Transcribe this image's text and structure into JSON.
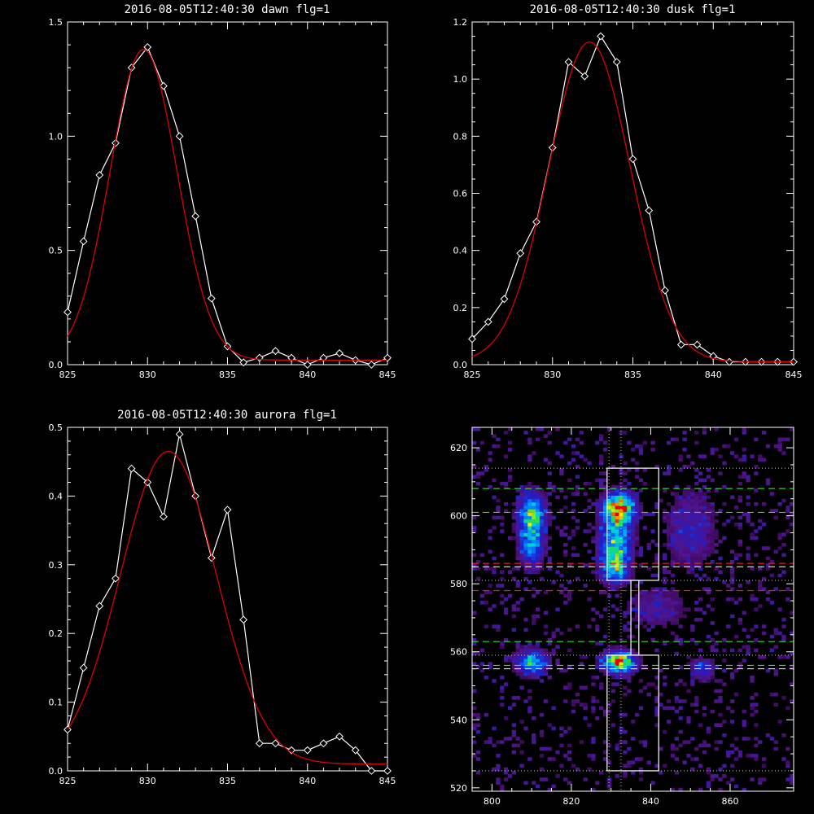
{
  "chart_data": [
    {
      "type": "line",
      "title": "2016-08-05T12:40:30 dawn flg=1",
      "xlim": [
        825,
        845
      ],
      "ylim": [
        0,
        1.5
      ],
      "xticks": [
        "825",
        "830",
        "835",
        "840",
        "845"
      ],
      "yticks": [
        "0.0",
        "0.5",
        "1.0",
        "1.5"
      ],
      "grid": false,
      "series": [
        {
          "style": "data",
          "color": "#ffffff",
          "marker": "diamond",
          "x": [
            825,
            826,
            827,
            828,
            829,
            830,
            831,
            832,
            833,
            834,
            835,
            836,
            837,
            838,
            839,
            840,
            841,
            842,
            843,
            844,
            845
          ],
          "y": [
            0.23,
            0.54,
            0.83,
            0.97,
            1.3,
            1.39,
            1.22,
            1.0,
            0.65,
            0.29,
            0.08,
            0.01,
            0.03,
            0.06,
            0.03,
            0.0,
            0.03,
            0.05,
            0.02,
            0.0,
            0.03
          ]
        },
        {
          "style": "fit",
          "color": "#dd0000",
          "gauss": {
            "amp": 1.36,
            "center": 829.75,
            "sigma": 2.1,
            "offset": 0.02
          }
        }
      ]
    },
    {
      "type": "line",
      "title": "2016-08-05T12:40:30 dusk flg=1",
      "xlim": [
        825,
        845
      ],
      "ylim": [
        0,
        1.2
      ],
      "xticks": [
        "825",
        "830",
        "835",
        "840",
        "845"
      ],
      "yticks": [
        "0.0",
        "0.2",
        "0.4",
        "0.6",
        "0.8",
        "1.0",
        "1.2"
      ],
      "grid": false,
      "series": [
        {
          "style": "data",
          "color": "#ffffff",
          "marker": "diamond",
          "x": [
            825,
            826,
            827,
            828,
            829,
            830,
            831,
            832,
            833,
            834,
            835,
            836,
            837,
            838,
            839,
            840,
            841,
            842,
            843,
            844,
            845
          ],
          "y": [
            0.09,
            0.15,
            0.23,
            0.39,
            0.5,
            0.76,
            1.06,
            1.01,
            1.15,
            1.06,
            0.72,
            0.54,
            0.26,
            0.07,
            0.07,
            0.03,
            0.01,
            0.01,
            0.01,
            0.01,
            0.01
          ]
        },
        {
          "style": "fit",
          "color": "#dd0000",
          "gauss": {
            "amp": 1.12,
            "center": 832.3,
            "sigma": 2.55,
            "offset": 0.01
          }
        }
      ]
    },
    {
      "type": "line",
      "title": "2016-08-05T12:40:30 aurora flg=1",
      "xlim": [
        825,
        845
      ],
      "ylim": [
        0,
        0.5
      ],
      "xticks": [
        "825",
        "830",
        "835",
        "840",
        "845"
      ],
      "yticks": [
        "0.0",
        "0.1",
        "0.2",
        "0.3",
        "0.4",
        "0.5"
      ],
      "grid": false,
      "series": [
        {
          "style": "data",
          "color": "#ffffff",
          "marker": "diamond",
          "x": [
            825,
            826,
            827,
            828,
            829,
            830,
            831,
            832,
            833,
            834,
            835,
            836,
            837,
            838,
            839,
            840,
            841,
            842,
            843,
            844,
            845
          ],
          "y": [
            0.06,
            0.15,
            0.24,
            0.28,
            0.44,
            0.42,
            0.37,
            0.49,
            0.4,
            0.31,
            0.38,
            0.22,
            0.04,
            0.04,
            0.03,
            0.03,
            0.04,
            0.05,
            0.03,
            0.0,
            0.0
          ]
        },
        {
          "style": "fit",
          "color": "#dd0000",
          "gauss": {
            "amp": 0.455,
            "center": 831.3,
            "sigma": 3.0,
            "offset": 0.01
          }
        }
      ]
    },
    {
      "type": "heatmap",
      "title": "",
      "xlim": [
        795,
        876
      ],
      "ylim": [
        519,
        626
      ],
      "xticks": [
        "800",
        "820",
        "840",
        "860"
      ],
      "yticks": [
        "520",
        "540",
        "560",
        "580",
        "600",
        "620"
      ],
      "grid": false,
      "colormap": "rainbow",
      "hotspots": [
        {
          "x": 810,
          "y": 601,
          "sx": 2.2,
          "sy": 4.0,
          "amp": 0.55
        },
        {
          "x": 810,
          "y": 592,
          "sx": 2.0,
          "sy": 4.5,
          "amp": 0.45
        },
        {
          "x": 832,
          "y": 602,
          "sx": 2.5,
          "sy": 3.0,
          "amp": 1.0
        },
        {
          "x": 831,
          "y": 591,
          "sx": 2.5,
          "sy": 5.0,
          "amp": 0.6
        },
        {
          "x": 831,
          "y": 584,
          "sx": 2.0,
          "sy": 2.5,
          "amp": 0.4
        },
        {
          "x": 832,
          "y": 557,
          "sx": 2.5,
          "sy": 2.0,
          "amp": 0.95
        },
        {
          "x": 810,
          "y": 557,
          "sx": 2.5,
          "sy": 2.2,
          "amp": 0.55
        },
        {
          "x": 853,
          "y": 555,
          "sx": 2.0,
          "sy": 2.0,
          "amp": 0.28
        },
        {
          "x": 850,
          "y": 596,
          "sx": 4.0,
          "sy": 7.0,
          "amp": 0.2
        },
        {
          "x": 842,
          "y": 573,
          "sx": 5.0,
          "sy": 4.0,
          "amp": 0.14
        }
      ],
      "white_boxes": [
        {
          "x0": 829,
          "x1": 842,
          "y0": 581,
          "y1": 614
        },
        {
          "x0": 829,
          "x1": 842,
          "y0": 525,
          "y1": 559
        },
        {
          "x0": 835,
          "x1": 837,
          "y0": 559,
          "y1": 581
        }
      ],
      "green_dashed_y": [
        608,
        601,
        563,
        556
      ],
      "red_dashed_y": [
        586,
        578
      ],
      "white_dashed_y": [
        585,
        555
      ],
      "dotted_y": [
        614,
        581,
        559,
        525
      ],
      "dotted_x": [
        829.5,
        832.5
      ],
      "colors": {
        "box": "#ffffff",
        "green": "#33dd33",
        "red": "#dd2222",
        "dotted": "#cccccc"
      }
    }
  ]
}
